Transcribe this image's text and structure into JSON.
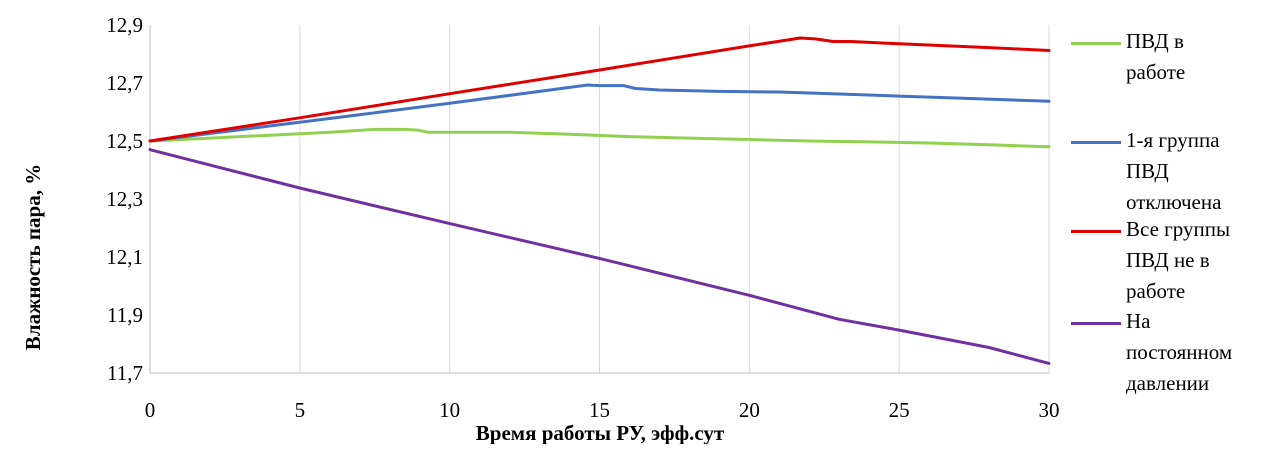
{
  "chart_data": {
    "type": "line",
    "title": "",
    "xlabel": "Время работы РУ, эфф.сут",
    "ylabel": "Влажность пара, %",
    "xlim": [
      0,
      30
    ],
    "ylim": [
      11.7,
      12.9
    ],
    "x_ticks": [
      0,
      5,
      10,
      15,
      20,
      25,
      30
    ],
    "x_tick_labels": [
      "0",
      "5",
      "10",
      "15",
      "20",
      "25",
      "30"
    ],
    "y_ticks": [
      11.7,
      11.9,
      12.1,
      12.3,
      12.5,
      12.7,
      12.9
    ],
    "y_tick_labels": [
      "11,7",
      "11,9",
      "12,1",
      "12,3",
      "12,5",
      "12,7",
      "12,9"
    ],
    "grid": "vertical",
    "legend_position": "right",
    "series": [
      {
        "name": "ПВД в работе",
        "color": "#92d050",
        "x": [
          0,
          2,
          4,
          6,
          7.5,
          8.5,
          8.9,
          9.3,
          10,
          12,
          14,
          16,
          18,
          20,
          22,
          24,
          26,
          28,
          30
        ],
        "y": [
          12.5,
          12.51,
          12.52,
          12.53,
          12.54,
          12.54,
          12.538,
          12.53,
          12.53,
          12.53,
          12.523,
          12.515,
          12.51,
          12.505,
          12.5,
          12.497,
          12.493,
          12.487,
          12.48
        ]
      },
      {
        "name": "1-я группа ПВД отключена",
        "color": "#4472c4",
        "x": [
          0,
          5,
          10,
          14.6,
          15.0,
          15.8,
          16.2,
          17,
          19,
          21,
          23,
          25,
          27,
          30
        ],
        "y": [
          12.5,
          12.565,
          12.63,
          12.693,
          12.691,
          12.691,
          12.681,
          12.676,
          12.671,
          12.669,
          12.662,
          12.655,
          12.648,
          12.637
        ]
      },
      {
        "name": "Все группы ПВД не в работе",
        "color": "#e00000",
        "x": [
          0,
          5,
          10,
          15,
          20,
          21.7,
          22.2,
          22.8,
          23.4,
          25,
          28,
          30
        ],
        "y": [
          12.5,
          12.58,
          12.663,
          12.745,
          12.828,
          12.855,
          12.852,
          12.843,
          12.843,
          12.835,
          12.822,
          12.812
        ]
      },
      {
        "name": "На постоянном давлении",
        "color": "#7030a0",
        "x": [
          0,
          5,
          10,
          15,
          20,
          23,
          25,
          28,
          30
        ],
        "y": [
          12.47,
          12.338,
          12.215,
          12.095,
          11.968,
          11.885,
          11.848,
          11.788,
          11.733
        ]
      }
    ]
  },
  "legend": {
    "items": [
      {
        "label": "ПВД в\nработе",
        "color": "#92d050"
      },
      {
        "label": "1-я группа\nПВД\nотключена",
        "color": "#4472c4"
      },
      {
        "label": "Все группы\nПВД не в\nработе",
        "color": "#e00000"
      },
      {
        "label": "На\nпостоянном\nдавлении",
        "color": "#7030a0"
      }
    ]
  },
  "colors": {
    "grid": "#d9d9d9",
    "axis": "#bfbfbf"
  }
}
